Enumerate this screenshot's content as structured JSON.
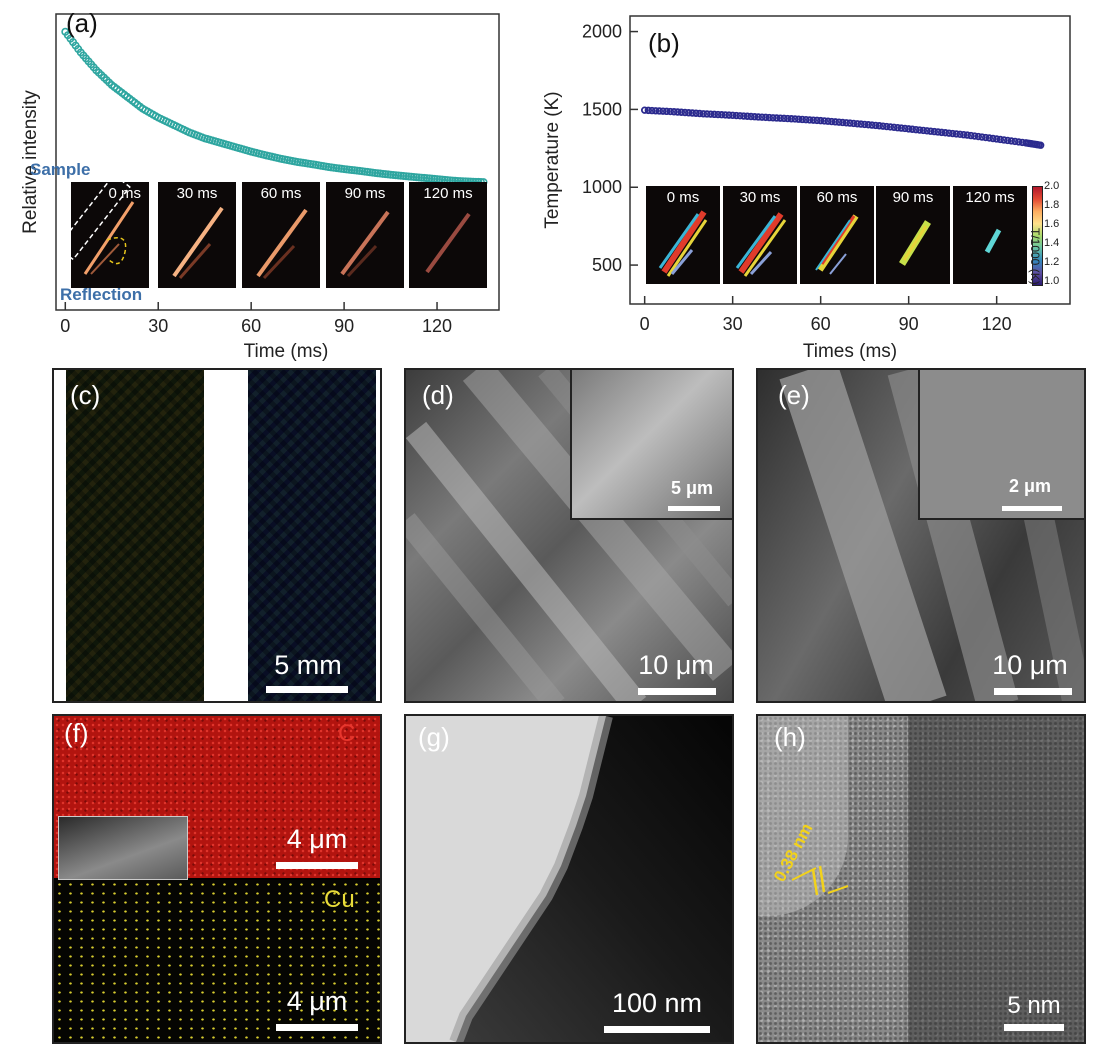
{
  "figure": {
    "panel_a": {
      "label": "(a)",
      "ylabel": "Relative intensity",
      "xlabel": "Time (ms)",
      "xticks": [
        "0",
        "30",
        "60",
        "90",
        "120"
      ],
      "inset_frames": [
        "0 ms",
        "30 ms",
        "60 ms",
        "90 ms",
        "120 ms"
      ],
      "sample_label": "Sample",
      "reflection_label": "Reflection"
    },
    "panel_b": {
      "label": "(b)",
      "ylabel": "Temperature (K)",
      "xlabel": "Times (ms)",
      "xticks": [
        "0",
        "30",
        "60",
        "90",
        "120"
      ],
      "yticks": [
        "500",
        "1000",
        "1500",
        "2000"
      ],
      "inset_frames": [
        "0 ms",
        "30 ms",
        "60 ms",
        "90 ms",
        "120 ms"
      ],
      "colorbar_label": "T/1000 (K)",
      "colorbar_ticks": [
        "2.0",
        "1.8",
        "1.6",
        "1.4",
        "1.2",
        "1.0"
      ]
    },
    "panel_c": {
      "label": "(c)",
      "scale": "5 mm"
    },
    "panel_d": {
      "label": "(d)",
      "scale": "10 μm",
      "inset_scale": "5 μm"
    },
    "panel_e": {
      "label": "(e)",
      "scale": "10 μm",
      "inset_scale": "2 μm"
    },
    "panel_f": {
      "label": "(f)",
      "element_top": "C",
      "element_bottom": "Cu",
      "scale_top": "4 μm",
      "scale_bottom": "4 μm"
    },
    "panel_g": {
      "label": "(g)",
      "scale": "100 nm"
    },
    "panel_h": {
      "label": "(h)",
      "scale": "5 nm",
      "d_spacing": "0.38 nm"
    }
  },
  "colors": {
    "intensity_series": "#2fa6a0",
    "temperature_series": "#2b2a8e",
    "annotation_blue": "#3d6fa8",
    "annotation_yellow": "#f2d21b",
    "edx_carbon": "#d0251f",
    "edx_copper": "#e2d63a"
  },
  "chart_data": [
    {
      "type": "scatter",
      "panel": "(a)",
      "xlabel": "Time (ms)",
      "ylabel": "Relative intensity",
      "xlim": [
        -3,
        140
      ],
      "ylim": [
        0,
        1
      ],
      "x": [
        0,
        5,
        10,
        15,
        20,
        25,
        30,
        35,
        40,
        45,
        50,
        55,
        60,
        65,
        70,
        75,
        80,
        85,
        90,
        95,
        100,
        105,
        110,
        115,
        120,
        125,
        130,
        135
      ],
      "y": [
        0.94,
        0.87,
        0.81,
        0.76,
        0.72,
        0.68,
        0.65,
        0.625,
        0.6,
        0.58,
        0.565,
        0.55,
        0.535,
        0.522,
        0.51,
        0.5,
        0.492,
        0.483,
        0.476,
        0.47,
        0.463,
        0.457,
        0.452,
        0.447,
        0.442,
        0.437,
        0.434,
        0.432
      ]
    },
    {
      "type": "scatter",
      "panel": "(b)",
      "xlabel": "Times (ms)",
      "ylabel": "Temperature (K)",
      "xlim": [
        -5,
        145
      ],
      "ylim": [
        250,
        2100
      ],
      "x": [
        0,
        10,
        20,
        30,
        40,
        50,
        60,
        70,
        80,
        90,
        100,
        110,
        120,
        130,
        135
      ],
      "y": [
        1495,
        1485,
        1472,
        1462,
        1450,
        1440,
        1428,
        1412,
        1395,
        1375,
        1355,
        1335,
        1310,
        1285,
        1270
      ]
    }
  ]
}
